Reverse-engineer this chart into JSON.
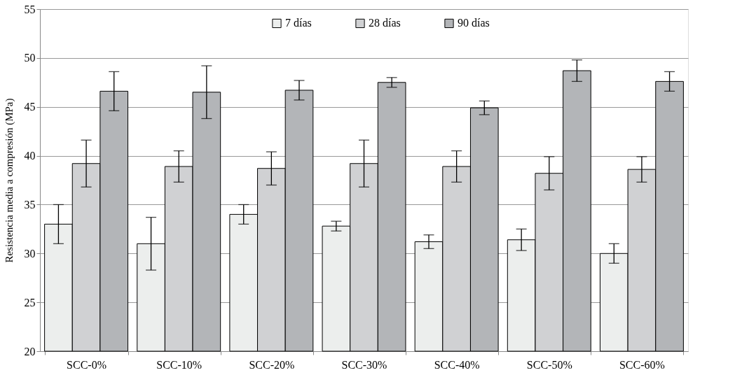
{
  "chart_data": {
    "type": "bar",
    "ylabel": "Resistencia media  a compresión (MPa)",
    "categories": [
      "SCC-0%",
      "SCC-10%",
      "SCC-20%",
      "SCC-30%",
      "SCC-40%",
      "SCC-50%",
      "SCC-60%"
    ],
    "series": [
      {
        "name": "7 días",
        "color": "#eceeed",
        "values": [
          33.0,
          31.0,
          34.0,
          32.8,
          31.2,
          31.4,
          30.0
        ],
        "errors": [
          2.0,
          2.7,
          1.0,
          0.5,
          0.7,
          1.1,
          1.0
        ]
      },
      {
        "name": "28 días",
        "color": "#d0d1d3",
        "values": [
          39.2,
          38.9,
          38.7,
          39.2,
          38.9,
          38.2,
          38.6
        ],
        "errors": [
          2.4,
          1.6,
          1.7,
          2.4,
          1.6,
          1.7,
          1.3
        ]
      },
      {
        "name": "90 días",
        "color": "#b3b5b8",
        "values": [
          46.6,
          46.5,
          46.7,
          47.5,
          44.9,
          48.7,
          47.6
        ],
        "errors": [
          2.0,
          2.7,
          1.0,
          0.5,
          0.7,
          1.1,
          1.0
        ]
      }
    ],
    "ylim": [
      20,
      55
    ],
    "yticks": [
      20,
      25,
      30,
      35,
      40,
      45,
      50,
      55
    ],
    "grid": "y",
    "legend": "top"
  }
}
